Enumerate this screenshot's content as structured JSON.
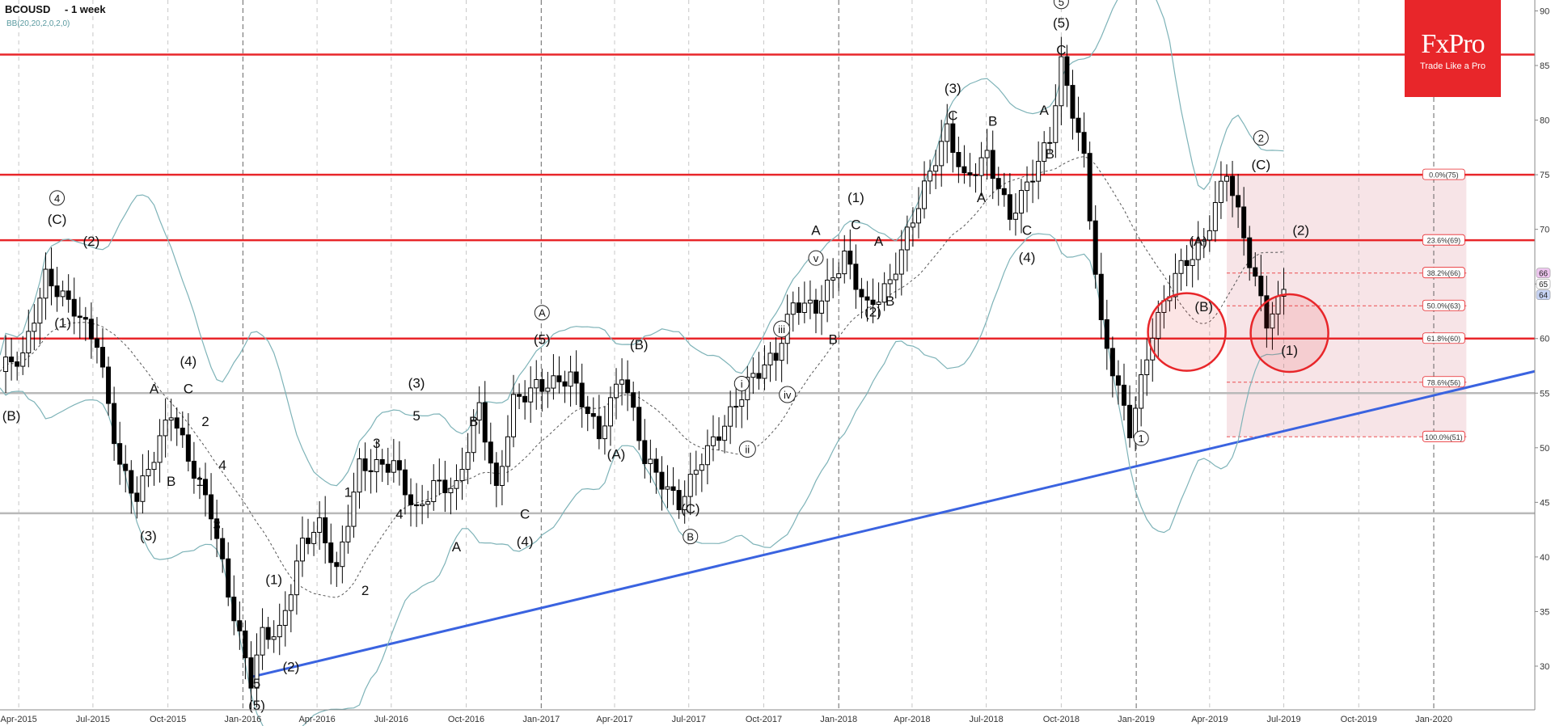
{
  "header": {
    "symbol": "BCOUSD",
    "timeframe": "- 1 week",
    "indicator": "BB(20,20,2,0,2,0)"
  },
  "brand": {
    "name": "FxPro",
    "tagline": "Trade Like a Pro"
  },
  "colors": {
    "background": "#ffffff",
    "resistance_line": "#e8262a",
    "support_gray": "#b9b9b9",
    "trendline": "#3a63e0",
    "bollinger": "#7eb3b8",
    "fib_zone": "#f6dfe3",
    "brand": "#e8262a"
  },
  "price_scale": {
    "range": [
      26,
      91
    ],
    "ticks": [
      "30",
      "35",
      "40",
      "45",
      "50",
      "55",
      "60",
      "65",
      "70",
      "75",
      "80",
      "85",
      "90"
    ]
  },
  "time_axis": {
    "labels": [
      "Apr-2015",
      "Jul-2015",
      "Oct-2015",
      "Jan-2016",
      "Apr-2016",
      "Jul-2016",
      "Oct-2016",
      "Jan-2017",
      "Apr-2017",
      "Jul-2017",
      "Oct-2017",
      "Jan-2018",
      "Apr-2018",
      "Jul-2018",
      "Oct-2018",
      "Jan-2019",
      "Apr-2019",
      "Jul-2019",
      "Oct-2019",
      "Jan-2020"
    ]
  },
  "price_badges": [
    "66",
    "65",
    "64"
  ],
  "chart_data": {
    "type": "candlestick",
    "title": "BCOUSD - 1 week",
    "indicator": "BB(20,20,2,0,2,0)",
    "x_range": [
      "2015-03-09",
      "2020-05-04"
    ],
    "ylim": [
      26,
      91
    ],
    "grid": false,
    "closes": [
      [
        "2015-03-09",
        56.5
      ],
      [
        "2015-04-06",
        57.5
      ],
      [
        "2015-05-04",
        65.5
      ],
      [
        "2015-06-08",
        63.5
      ],
      [
        "2015-07-06",
        60.5
      ],
      [
        "2015-08-03",
        48.5
      ],
      [
        "2015-08-24",
        45.0
      ],
      [
        "2015-09-14",
        48.5
      ],
      [
        "2015-10-05",
        52.5
      ],
      [
        "2015-10-26",
        48.5
      ],
      [
        "2015-11-23",
        44.5
      ],
      [
        "2015-12-14",
        37.5
      ],
      [
        "2016-01-11",
        29.5
      ],
      [
        "2016-01-25",
        33.5
      ],
      [
        "2016-02-15",
        33.0
      ],
      [
        "2016-03-14",
        40.5
      ],
      [
        "2016-04-04",
        42.0
      ],
      [
        "2016-04-25",
        38.0
      ],
      [
        "2016-05-23",
        48.5
      ],
      [
        "2016-06-13",
        49.0
      ],
      [
        "2016-07-04",
        49.5
      ],
      [
        "2016-08-01",
        44.5
      ],
      [
        "2016-08-22",
        46.5
      ],
      [
        "2016-09-19",
        45.5
      ],
      [
        "2016-10-17",
        53.0
      ],
      [
        "2016-11-07",
        45.5
      ],
      [
        "2016-11-28",
        54.5
      ],
      [
        "2016-12-26",
        56.5
      ],
      [
        "2017-02-06",
        57.0
      ],
      [
        "2017-03-13",
        50.5
      ],
      [
        "2017-04-10",
        56.0
      ],
      [
        "2017-05-08",
        48.5
      ],
      [
        "2017-06-19",
        45.5
      ],
      [
        "2017-07-17",
        50.0
      ],
      [
        "2017-08-14",
        52.5
      ],
      [
        "2017-09-11",
        55.5
      ],
      [
        "2017-10-16",
        57.5
      ],
      [
        "2017-11-06",
        62.5
      ],
      [
        "2017-12-04",
        63.0
      ],
      [
        "2018-01-08",
        68.5
      ],
      [
        "2018-02-05",
        63.5
      ],
      [
        "2018-03-05",
        65.0
      ],
      [
        "2018-04-09",
        71.5
      ],
      [
        "2018-05-14",
        78.5
      ],
      [
        "2018-06-04",
        74.5
      ],
      [
        "2018-07-02",
        77.5
      ],
      [
        "2018-07-30",
        72.0
      ],
      [
        "2018-08-20",
        74.5
      ],
      [
        "2018-09-17",
        78.0
      ],
      [
        "2018-10-01",
        84.5
      ],
      [
        "2018-10-29",
        75.5
      ],
      [
        "2018-11-19",
        60.5
      ],
      [
        "2018-12-24",
        52.0
      ],
      [
        "2019-01-21",
        61.5
      ],
      [
        "2019-02-18",
        66.5
      ],
      [
        "2019-03-25",
        68.5
      ],
      [
        "2019-04-22",
        74.5
      ],
      [
        "2019-05-20",
        66.5
      ],
      [
        "2019-06-10",
        61.5
      ],
      [
        "2019-07-01",
        64.5
      ]
    ],
    "resistance_levels": [
      86.0,
      75.0,
      69.0,
      60.0
    ],
    "support_levels": [
      55.0,
      44.0
    ],
    "trendline": {
      "from": [
        "2016-01-11",
        29.0
      ],
      "to": [
        "2020-05-04",
        57.0
      ]
    },
    "fibonacci": {
      "from_date": "2019-04-22",
      "to_date": "2020-02-10",
      "levels": [
        {
          "label": "0.0%(75)",
          "price": 75
        },
        {
          "label": "23.6%(69)",
          "price": 69
        },
        {
          "label": "38.2%(66)",
          "price": 66
        },
        {
          "label": "50.0%(63)",
          "price": 63
        },
        {
          "label": "61.8%(60)",
          "price": 60
        },
        {
          "label": "78.6%(56)",
          "price": 56
        },
        {
          "label": "100.0%(51)",
          "price": 51
        }
      ]
    },
    "wave_labels": [
      {
        "text": "4",
        "date": "2015-05-18",
        "price": 72.5,
        "circled": true
      },
      {
        "text": "(C)",
        "date": "2015-05-18",
        "price": 70.5
      },
      {
        "text": "(2)",
        "date": "2015-06-29",
        "price": 68.5
      },
      {
        "text": "(1)",
        "date": "2015-05-25",
        "price": 61.0
      },
      {
        "text": "(B)",
        "date": "2015-03-23",
        "price": 52.5
      },
      {
        "text": "A",
        "date": "2015-09-14",
        "price": 55.0
      },
      {
        "text": "(4)",
        "date": "2015-10-26",
        "price": 57.5
      },
      {
        "text": "C",
        "date": "2015-10-26",
        "price": 55.0
      },
      {
        "text": "2",
        "date": "2015-11-16",
        "price": 52.0
      },
      {
        "text": "B",
        "date": "2015-10-05",
        "price": 46.5
      },
      {
        "text": "1",
        "date": "2015-11-09",
        "price": 46.5
      },
      {
        "text": "4",
        "date": "2015-12-07",
        "price": 48.0
      },
      {
        "text": "3",
        "date": "2015-11-30",
        "price": 42.5
      },
      {
        "text": "(3)",
        "date": "2015-09-07",
        "price": 41.5
      },
      {
        "text": "(1)",
        "date": "2016-02-08",
        "price": 37.5
      },
      {
        "text": "(2)",
        "date": "2016-02-29",
        "price": 29.5
      },
      {
        "text": "5",
        "date": "2016-01-18",
        "price": 28.0
      },
      {
        "text": "(5)",
        "date": "2016-01-18",
        "price": 26.0
      },
      {
        "text": "1",
        "date": "2016-05-09",
        "price": 45.5
      },
      {
        "text": "3",
        "date": "2016-06-13",
        "price": 50.0
      },
      {
        "text": "2",
        "date": "2016-05-30",
        "price": 36.5
      },
      {
        "text": "4",
        "date": "2016-07-11",
        "price": 43.5
      },
      {
        "text": "(3)",
        "date": "2016-08-01",
        "price": 55.5
      },
      {
        "text": "5",
        "date": "2016-08-01",
        "price": 52.5
      },
      {
        "text": "B",
        "date": "2016-10-10",
        "price": 52.0
      },
      {
        "text": "A",
        "date": "2016-09-19",
        "price": 40.5
      },
      {
        "text": "C",
        "date": "2016-12-12",
        "price": 43.5
      },
      {
        "text": "(4)",
        "date": "2016-12-12",
        "price": 41.0
      },
      {
        "text": "A",
        "date": "2017-01-02",
        "price": 62.0,
        "circled": true
      },
      {
        "text": "(5)",
        "date": "2017-01-02",
        "price": 59.5
      },
      {
        "text": "(B)",
        "date": "2017-05-01",
        "price": 59.0
      },
      {
        "text": "(A)",
        "date": "2017-04-03",
        "price": 49.0
      },
      {
        "text": "(C)",
        "date": "2017-07-03",
        "price": 44.0
      },
      {
        "text": "B",
        "date": "2017-07-03",
        "price": 41.5,
        "circled": true
      },
      {
        "text": "i",
        "date": "2017-09-04",
        "price": 55.5,
        "circled": true
      },
      {
        "text": "ii",
        "date": "2017-09-11",
        "price": 49.5,
        "circled": true
      },
      {
        "text": "iii",
        "date": "2017-10-23",
        "price": 60.5,
        "circled": true
      },
      {
        "text": "iv",
        "date": "2017-10-30",
        "price": 54.5,
        "circled": true
      },
      {
        "text": "v",
        "date": "2017-12-04",
        "price": 67.0,
        "circled": true
      },
      {
        "text": "A",
        "date": "2017-12-04",
        "price": 69.5
      },
      {
        "text": "B",
        "date": "2017-12-25",
        "price": 59.5
      },
      {
        "text": "(1)",
        "date": "2018-01-22",
        "price": 72.5
      },
      {
        "text": "C",
        "date": "2018-01-22",
        "price": 70.0
      },
      {
        "text": "A",
        "date": "2018-02-19",
        "price": 68.5
      },
      {
        "text": "(2)",
        "date": "2018-02-12",
        "price": 62.0
      },
      {
        "text": "B",
        "date": "2018-03-05",
        "price": 63.0
      },
      {
        "text": "(3)",
        "date": "2018-05-21",
        "price": 82.5
      },
      {
        "text": "C",
        "date": "2018-05-21",
        "price": 80.0
      },
      {
        "text": "B",
        "date": "2018-07-09",
        "price": 79.5
      },
      {
        "text": "A",
        "date": "2018-06-25",
        "price": 72.5
      },
      {
        "text": "C",
        "date": "2018-08-20",
        "price": 69.5
      },
      {
        "text": "(4)",
        "date": "2018-08-20",
        "price": 67.0
      },
      {
        "text": "A",
        "date": "2018-09-10",
        "price": 80.5
      },
      {
        "text": "B",
        "date": "2018-09-17",
        "price": 76.5
      },
      {
        "text": "5",
        "date": "2018-10-01",
        "price": 90.5,
        "circled": true
      },
      {
        "text": "(5)",
        "date": "2018-10-01",
        "price": 88.5
      },
      {
        "text": "C",
        "date": "2018-10-01",
        "price": 86.0
      },
      {
        "text": "1",
        "date": "2019-01-07",
        "price": 50.5,
        "circled": true
      },
      {
        "text": "(A)",
        "date": "2019-03-18",
        "price": 68.5
      },
      {
        "text": "(B)",
        "date": "2019-03-25",
        "price": 62.5
      },
      {
        "text": "2",
        "date": "2019-06-03",
        "price": 78.0,
        "circled": true
      },
      {
        "text": "(C)",
        "date": "2019-06-03",
        "price": 75.5
      },
      {
        "text": "(2)",
        "date": "2019-07-22",
        "price": 69.5
      },
      {
        "text": "(1)",
        "date": "2019-07-08",
        "price": 58.5
      }
    ],
    "circle_highlights": [
      {
        "date": "2019-03-04",
        "price": 60.6
      },
      {
        "date": "2019-07-08",
        "price": 60.5
      }
    ]
  }
}
